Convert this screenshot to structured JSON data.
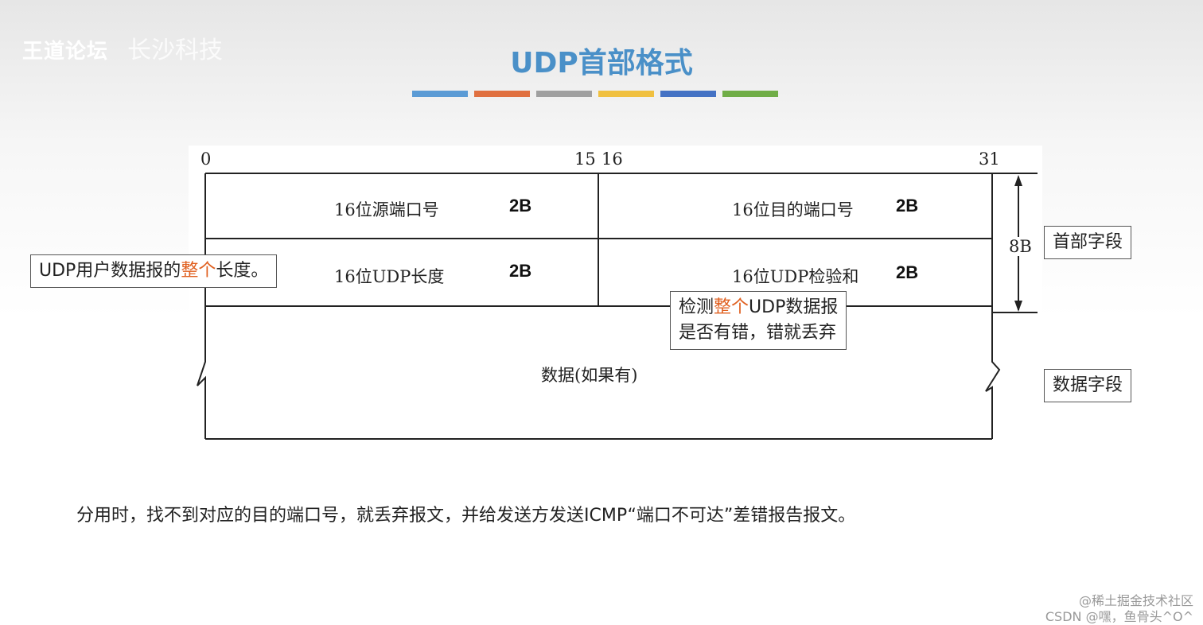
{
  "header": {
    "logo": "王道论坛",
    "logo_script": "长沙科技",
    "title": "UDP首部格式",
    "bar_colors": [
      "#5b9bd5",
      "#e07040",
      "#a0a0a0",
      "#f0c040",
      "#4472c4",
      "#70ad47"
    ]
  },
  "diagram": {
    "bit_labels": [
      "0",
      "15",
      "16",
      "31"
    ],
    "fields": [
      {
        "label": "16位源端口号",
        "size": "2B"
      },
      {
        "label": "16位目的端口号",
        "size": "2B"
      },
      {
        "label": "16位UDP长度",
        "size": "2B"
      },
      {
        "label": "16位UDP检验和",
        "size": "2B"
      }
    ],
    "data_label": "数据(如果有)",
    "header_size": "8B",
    "header_section": "首部字段",
    "data_section": "数据字段",
    "callout_length": {
      "pre": "UDP用户数据报的",
      "hl": "整个",
      "post": "长度。"
    },
    "callout_checksum": {
      "pre": "检测",
      "hl": "整个",
      "post": "UDP数据报",
      "line2": "是否有错，错就丢弃"
    },
    "highlight_color": "#e06020"
  },
  "note": "分用时，找不到对应的目的端口号，就丢弃报文，并给发送方发送ICMP“端口不可达”差错报告报文。",
  "watermark": {
    "line1": "@稀土掘金技术社区",
    "line2": "CSDN @嘿，鱼骨头^O^"
  }
}
